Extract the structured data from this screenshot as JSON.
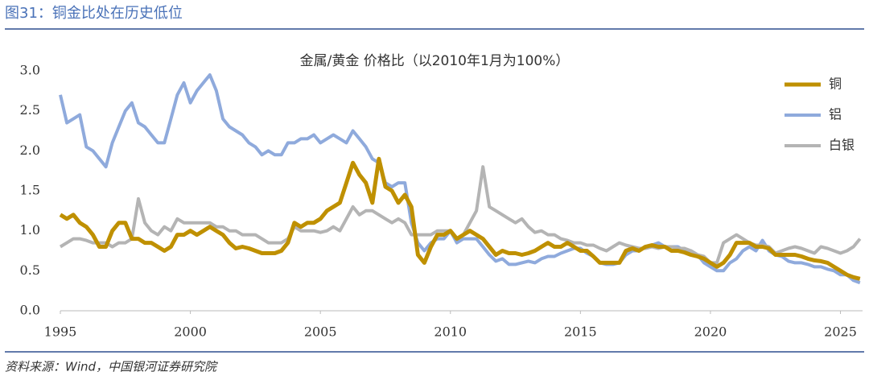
{
  "header": {
    "title": "图31：铜金比处在历史低位"
  },
  "source": "资料来源：Wind，中国银河证券研究院",
  "chart_data": {
    "type": "line",
    "title": "金属/黄金 价格比（以2010年1月为100%）",
    "x": [
      1995,
      1995.25,
      1995.5,
      1995.75,
      1996,
      1996.25,
      1996.5,
      1996.75,
      1997,
      1997.25,
      1997.5,
      1997.75,
      1998,
      1998.25,
      1998.5,
      1998.75,
      1999,
      1999.25,
      1999.5,
      1999.75,
      2000,
      2000.25,
      2000.5,
      2000.75,
      2001,
      2001.25,
      2001.5,
      2001.75,
      2002,
      2002.25,
      2002.5,
      2002.75,
      2003,
      2003.25,
      2003.5,
      2003.75,
      2004,
      2004.25,
      2004.5,
      2004.75,
      2005,
      2005.25,
      2005.5,
      2005.75,
      2006,
      2006.25,
      2006.5,
      2006.75,
      2007,
      2007.25,
      2007.5,
      2007.75,
      2008,
      2008.25,
      2008.5,
      2008.75,
      2009,
      2009.25,
      2009.5,
      2009.75,
      2010,
      2010.25,
      2010.5,
      2010.75,
      2011,
      2011.25,
      2011.5,
      2011.75,
      2012,
      2012.25,
      2012.5,
      2012.75,
      2013,
      2013.25,
      2013.5,
      2013.75,
      2014,
      2014.25,
      2014.5,
      2014.75,
      2015,
      2015.25,
      2015.5,
      2015.75,
      2016,
      2016.25,
      2016.5,
      2016.75,
      2017,
      2017.25,
      2017.5,
      2017.75,
      2018,
      2018.25,
      2018.5,
      2018.75,
      2019,
      2019.25,
      2019.5,
      2019.75,
      2020,
      2020.25,
      2020.5,
      2020.75,
      2021,
      2021.25,
      2021.5,
      2021.75,
      2022,
      2022.25,
      2022.5,
      2022.75,
      2023,
      2023.25,
      2023.5,
      2023.75,
      2024,
      2024.25,
      2024.5,
      2024.75,
      2025,
      2025.25,
      2025.5,
      2025.75
    ],
    "series": [
      {
        "name": "铝",
        "color": "#8faadc",
        "width": 4,
        "values": [
          2.7,
          2.35,
          2.4,
          2.45,
          2.05,
          2.0,
          1.9,
          1.8,
          2.1,
          2.3,
          2.5,
          2.6,
          2.35,
          2.3,
          2.2,
          2.1,
          2.1,
          2.4,
          2.7,
          2.85,
          2.6,
          2.75,
          2.85,
          2.95,
          2.75,
          2.4,
          2.3,
          2.25,
          2.2,
          2.1,
          2.05,
          1.95,
          2.0,
          1.95,
          1.95,
          2.1,
          2.1,
          2.15,
          2.15,
          2.2,
          2.1,
          2.15,
          2.2,
          2.15,
          2.1,
          2.25,
          2.15,
          2.05,
          1.9,
          1.85,
          1.6,
          1.55,
          1.6,
          1.6,
          1.1,
          0.85,
          0.75,
          0.85,
          0.9,
          0.9,
          1.0,
          0.85,
          0.9,
          0.9,
          0.9,
          0.8,
          0.7,
          0.62,
          0.65,
          0.58,
          0.58,
          0.6,
          0.62,
          0.6,
          0.65,
          0.68,
          0.68,
          0.72,
          0.75,
          0.78,
          0.78,
          0.72,
          0.68,
          0.6,
          0.58,
          0.58,
          0.6,
          0.7,
          0.75,
          0.75,
          0.8,
          0.82,
          0.85,
          0.8,
          0.8,
          0.8,
          0.75,
          0.75,
          0.7,
          0.6,
          0.55,
          0.5,
          0.5,
          0.6,
          0.65,
          0.75,
          0.8,
          0.75,
          0.88,
          0.75,
          0.7,
          0.68,
          0.62,
          0.6,
          0.6,
          0.58,
          0.55,
          0.55,
          0.52,
          0.5,
          0.45,
          0.45,
          0.38,
          0.35
        ]
      },
      {
        "name": "白银",
        "color": "#b4b4b4",
        "width": 4,
        "values": [
          0.8,
          0.85,
          0.9,
          0.9,
          0.88,
          0.85,
          0.85,
          0.85,
          0.8,
          0.85,
          0.85,
          0.9,
          1.4,
          1.1,
          1.0,
          0.95,
          1.05,
          1.0,
          1.15,
          1.1,
          1.1,
          1.1,
          1.1,
          1.1,
          1.05,
          1.05,
          1.0,
          1.0,
          0.95,
          0.95,
          0.95,
          0.9,
          0.85,
          0.85,
          0.85,
          0.9,
          1.05,
          1.0,
          1.0,
          1.0,
          0.98,
          1.0,
          1.05,
          1.0,
          1.15,
          1.3,
          1.2,
          1.25,
          1.25,
          1.2,
          1.15,
          1.1,
          1.15,
          1.1,
          0.95,
          0.95,
          0.95,
          0.95,
          1.0,
          1.0,
          1.0,
          0.9,
          0.95,
          1.1,
          1.25,
          1.8,
          1.3,
          1.25,
          1.2,
          1.15,
          1.1,
          1.15,
          1.05,
          0.98,
          1.0,
          0.95,
          0.95,
          0.9,
          0.88,
          0.85,
          0.85,
          0.82,
          0.82,
          0.78,
          0.75,
          0.8,
          0.85,
          0.82,
          0.8,
          0.78,
          0.78,
          0.8,
          0.78,
          0.8,
          0.8,
          0.78,
          0.78,
          0.75,
          0.7,
          0.68,
          0.6,
          0.6,
          0.85,
          0.9,
          0.95,
          0.9,
          0.85,
          0.82,
          0.82,
          0.8,
          0.72,
          0.75,
          0.78,
          0.8,
          0.78,
          0.75,
          0.72,
          0.8,
          0.78,
          0.75,
          0.72,
          0.75,
          0.8,
          0.9
        ]
      },
      {
        "name": "铜",
        "color": "#bf9000",
        "width": 5,
        "values": [
          1.2,
          1.15,
          1.2,
          1.1,
          1.05,
          0.95,
          0.8,
          0.8,
          1.0,
          1.1,
          1.1,
          0.9,
          0.9,
          0.85,
          0.85,
          0.8,
          0.75,
          0.8,
          0.95,
          0.95,
          1.0,
          0.95,
          1.0,
          1.05,
          1.0,
          0.95,
          0.85,
          0.78,
          0.8,
          0.78,
          0.75,
          0.72,
          0.72,
          0.72,
          0.75,
          0.85,
          1.1,
          1.05,
          1.1,
          1.1,
          1.15,
          1.25,
          1.3,
          1.35,
          1.6,
          1.85,
          1.7,
          1.6,
          1.35,
          1.9,
          1.55,
          1.5,
          1.35,
          1.45,
          1.3,
          0.7,
          0.6,
          0.8,
          0.95,
          0.95,
          1.0,
          0.9,
          0.95,
          1.0,
          0.95,
          0.9,
          0.8,
          0.7,
          0.75,
          0.72,
          0.72,
          0.7,
          0.72,
          0.75,
          0.8,
          0.85,
          0.8,
          0.8,
          0.85,
          0.8,
          0.75,
          0.75,
          0.68,
          0.6,
          0.6,
          0.6,
          0.6,
          0.75,
          0.78,
          0.75,
          0.8,
          0.82,
          0.8,
          0.8,
          0.75,
          0.75,
          0.73,
          0.7,
          0.68,
          0.65,
          0.6,
          0.55,
          0.6,
          0.7,
          0.85,
          0.85,
          0.85,
          0.8,
          0.8,
          0.78,
          0.7,
          0.7,
          0.7,
          0.7,
          0.68,
          0.65,
          0.63,
          0.62,
          0.6,
          0.55,
          0.5,
          0.45,
          0.42,
          0.4
        ]
      }
    ],
    "legend_order": [
      "铜",
      "铝",
      "白银"
    ],
    "xlim": [
      1995,
      2025.85
    ],
    "xticks": [
      1995,
      2000,
      2005,
      2010,
      2015,
      2020,
      2025
    ],
    "ylim": [
      0,
      3
    ],
    "yticks": [
      {
        "value": 0,
        "label": "0.0"
      },
      0.5,
      {
        "value": 1,
        "label": "1.0"
      },
      1.5,
      {
        "value": 2,
        "label": "2.0"
      },
      2.5,
      {
        "value": 3,
        "label": "3.0"
      }
    ],
    "grid": false,
    "legend": "right"
  }
}
